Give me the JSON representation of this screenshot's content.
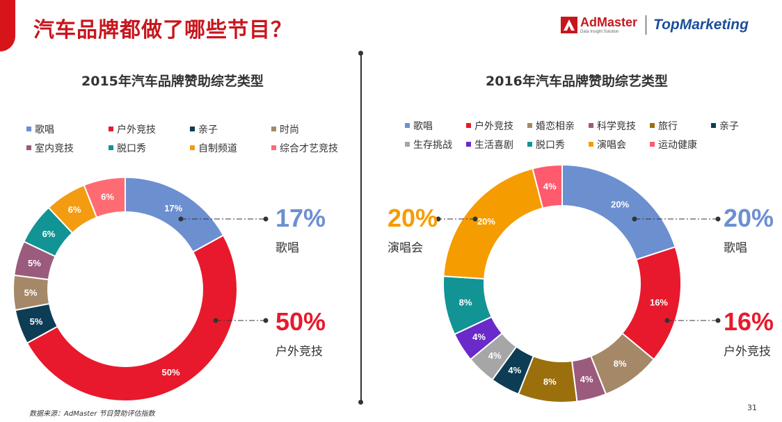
{
  "header": {
    "title": "汽车品牌都做了哪些节目？",
    "admaster_name": "AdMaster",
    "admaster_tagline": "Data Insight Solution",
    "topmarketing": "TopMarketing"
  },
  "colors": {
    "歌唱": "#6c8fd0",
    "户外竞技": "#e8192c",
    "亲子": "#0d3c55",
    "时尚": "#a58868",
    "室内竞技": "#9b5b7c",
    "脱口秀": "#129394",
    "自制频道": "#f39c12",
    "综合才艺竞技": "#ff6b73",
    "婚恋相亲": "#a58868",
    "科学竞技": "#9b5b7c",
    "旅行": "#9a6f0c",
    "生存挑战": "#a6a6a6",
    "生活喜剧": "#6a2ac9",
    "演唱会": "#f59c00",
    "运动健康": "#ff5a6e"
  },
  "chart_data": [
    {
      "type": "donut",
      "title": "2015年汽车品牌赞助综艺类型",
      "legend_rows": [
        [
          "歌唱",
          "户外竞技",
          "亲子",
          "时尚"
        ],
        [
          "室内竞技",
          "脱口秀",
          "自制频道",
          "综合才艺竞技"
        ]
      ],
      "slices": [
        {
          "name": "歌唱",
          "value": 17,
          "label": "17%"
        },
        {
          "name": "户外竞技",
          "value": 50,
          "label": "50%"
        },
        {
          "name": "亲子",
          "value": 5,
          "label": "5%"
        },
        {
          "name": "时尚",
          "value": 5,
          "label": "5%"
        },
        {
          "name": "室内竞技",
          "value": 5,
          "label": "5%"
        },
        {
          "name": "脱口秀",
          "value": 6,
          "label": "6%"
        },
        {
          "name": "自制频道",
          "value": 6,
          "label": "6%"
        },
        {
          "name": "综合才艺竞技",
          "value": 6,
          "label": "6%"
        }
      ],
      "callouts": [
        {
          "value": "17%",
          "label": "歌唱",
          "color": "#6c8fd0"
        },
        {
          "value": "50%",
          "label": "户外竞技",
          "color": "#e8192c"
        }
      ]
    },
    {
      "type": "donut",
      "title": "2016年汽车品牌赞助综艺类型",
      "legend_rows": [
        [
          "歌唱",
          "户外竞技",
          "婚恋相亲",
          "科学竞技",
          "旅行",
          "亲子"
        ],
        [
          "生存挑战",
          "生活喜剧",
          "脱口秀",
          "演唱会",
          "运动健康"
        ]
      ],
      "slices": [
        {
          "name": "歌唱",
          "value": 20,
          "label": "20%"
        },
        {
          "name": "户外竞技",
          "value": 16,
          "label": "16%"
        },
        {
          "name": "婚恋相亲",
          "value": 8,
          "label": "8%"
        },
        {
          "name": "科学竞技",
          "value": 4,
          "label": "4%"
        },
        {
          "name": "旅行",
          "value": 8,
          "label": "8%"
        },
        {
          "name": "亲子",
          "value": 4,
          "label": "4%"
        },
        {
          "name": "生存挑战",
          "value": 4,
          "label": "4%"
        },
        {
          "name": "生活喜剧",
          "value": 4,
          "label": "4%"
        },
        {
          "name": "脱口秀",
          "value": 8,
          "label": "8%"
        },
        {
          "name": "演唱会",
          "value": 20,
          "label": "20%"
        },
        {
          "name": "运动健康",
          "value": 4,
          "label": "4%"
        }
      ],
      "callouts": [
        {
          "value": "20%",
          "label": "演唱会",
          "color": "#f59c00"
        },
        {
          "value": "20%",
          "label": "歌唱",
          "color": "#6c8fd0"
        },
        {
          "value": "16%",
          "label": "户外竞技",
          "color": "#e8192c"
        }
      ]
    }
  ],
  "footer": {
    "source": "数据来源：AdMaster 节目赞助评估指数",
    "page_number": "31"
  }
}
